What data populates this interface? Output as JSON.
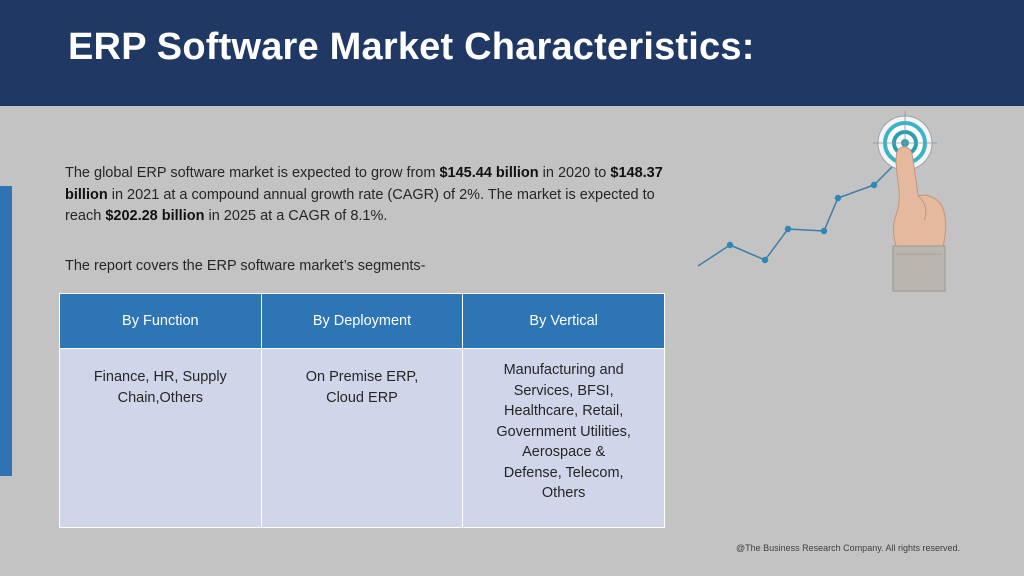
{
  "header": {
    "title": "ERP Software Market Characteristics:"
  },
  "intro": {
    "part1": "The global ERP software market is expected to grow from ",
    "value_2020": "$145.44 billion",
    "part2": " in 2020 to ",
    "value_2021": "$148.37 billion",
    "part3": " in 2021 at a compound annual growth rate (CAGR) of 2%. The market is expected to reach ",
    "value_2025": "$202.28 billion",
    "part4": " in 2025 at a CAGR of 8.1%."
  },
  "segments_intro": "The report covers the ERP software market’s segments-",
  "segments_table": {
    "headers": [
      "By Function",
      "By Deployment",
      "By Vertical"
    ],
    "cells": [
      "Finance, HR, Supply\nChain,Others",
      "On Premise ERP,\nCloud ERP",
      "Manufacturing and\nServices, BFSI,\nHealthcare, Retail,\nGovernment Utilities,\nAerospace &\nDefense, Telecom,\nOthers"
    ]
  },
  "graphic": {
    "icon": "target-touch-growth-icon"
  },
  "colors": {
    "header_bg": "#1f3864",
    "table_header_bg": "#2e75b6",
    "table_cell_bg": "#d0d5e9",
    "accent": "#2e74b5",
    "page_bg": "#c3c3c3"
  },
  "footer": {
    "copyright": "@The Business Research Company. All rights reserved."
  }
}
